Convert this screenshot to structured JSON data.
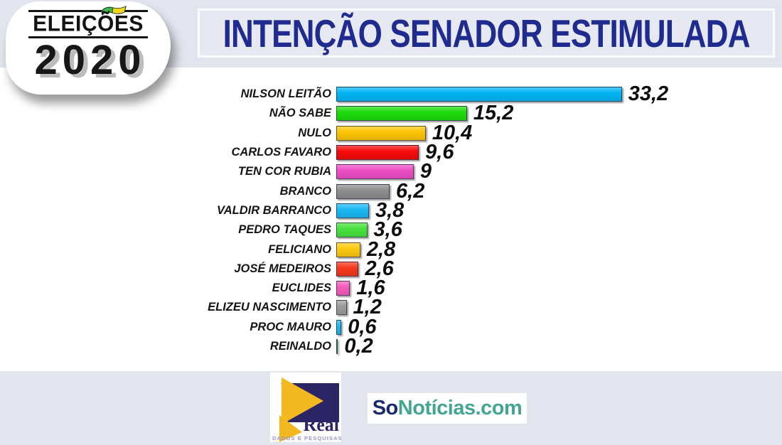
{
  "page": {
    "background_color": "#e2e4ee",
    "panel_color": "#ffffff"
  },
  "logo": {
    "line1": "ELEIÇÕES",
    "line2": "2020",
    "flag_green": "#3db54a",
    "flag_yellow": "#f5d61d"
  },
  "title": {
    "text": "INTENÇÃO SENADOR ESTIMULADA",
    "color": "#1f2b8f"
  },
  "chart_data": {
    "type": "bar",
    "orientation": "horizontal",
    "title": "INTENÇÃO SENADOR ESTIMULADA",
    "xlabel": "",
    "ylabel": "",
    "xlim": [
      0,
      35
    ],
    "grid": false,
    "legend": false,
    "categories": [
      "NILSON LEITÃO",
      "NÃO SABE",
      "NULO",
      "CARLOS FAVARO",
      "TEN COR RUBIA",
      "BRANCO",
      "VALDIR BARRANCO",
      "PEDRO TAQUES",
      "FELICIANO",
      "JOSÉ MEDEIROS",
      "EUCLIDES",
      "ELIZEU NASCIMENTO",
      "PROC MAURO",
      "REINALDO"
    ],
    "values": [
      33.2,
      15.2,
      10.4,
      9.6,
      9,
      6.2,
      3.8,
      3.6,
      2.8,
      2.6,
      1.6,
      1.2,
      0.6,
      0.2
    ],
    "value_labels": [
      "33,2",
      "15,2",
      "10,4",
      "9,6",
      "9",
      "6,2",
      "3,8",
      "3,6",
      "2,8",
      "2,6",
      "1,6",
      "1,2",
      "0,6",
      "0,2"
    ],
    "bar_colors": [
      "#00b4f4",
      "#1edc0c",
      "#fdc403",
      "#f80b0b",
      "#ec4ec4",
      "#8e8e8e",
      "#19b9f5",
      "#47e23e",
      "#fdc910",
      "#f5391d",
      "#f45cbb",
      "#9c9c9c",
      "#1cbaf2",
      "#2fd42b"
    ]
  },
  "footer": {
    "real": {
      "name": "Real",
      "subtitle": "DADOS E PESQUISAS",
      "navy_color": "#2b2566",
      "yellow_color": "#f3b71f"
    },
    "sonoticias": {
      "part1": "So",
      "part2": "Notícias.com",
      "part1_color": "#1b2a6b",
      "part2_color": "#43a693"
    }
  }
}
